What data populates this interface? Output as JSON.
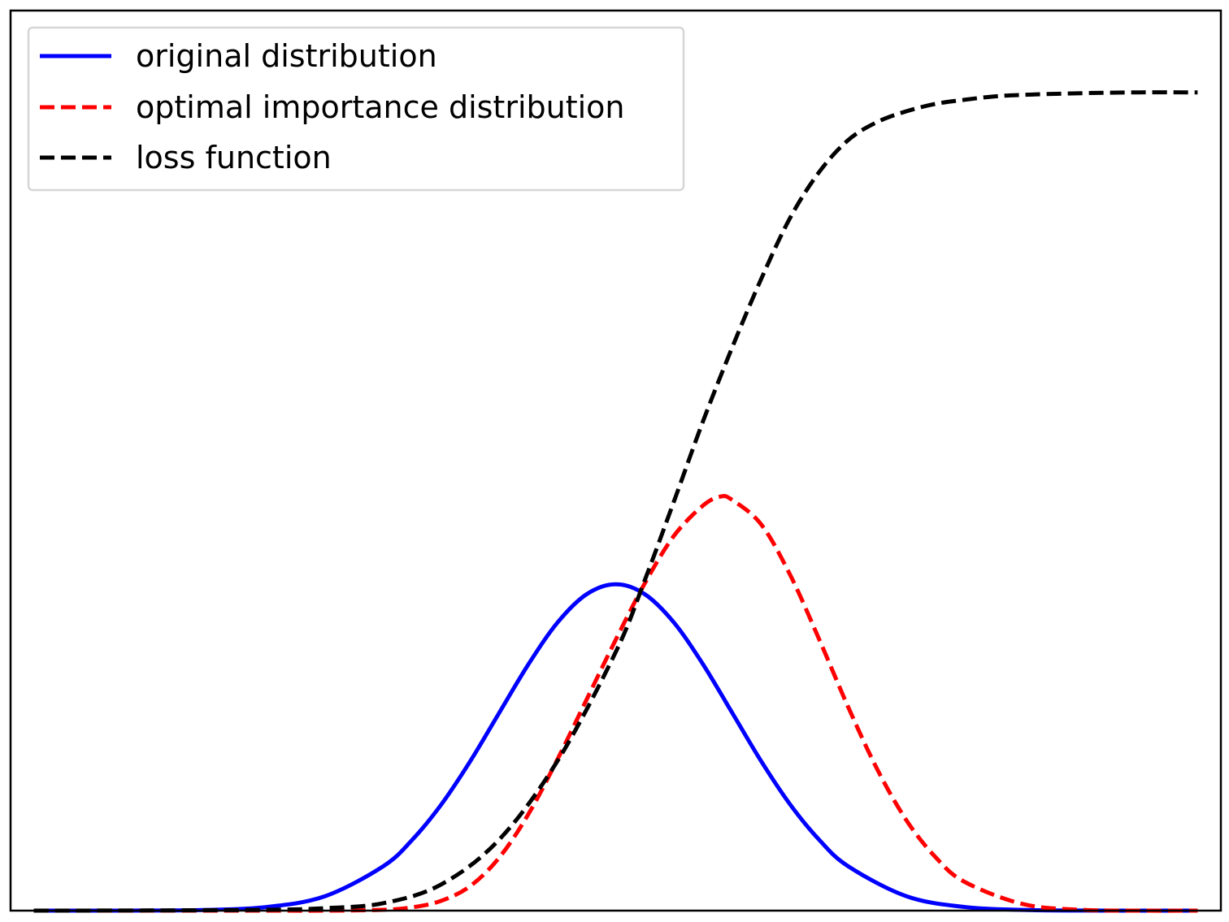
{
  "chart_data": {
    "type": "line",
    "title": "",
    "xlabel": "",
    "ylabel": "",
    "xlim": [
      -5.2,
      5.2
    ],
    "ylim": [
      0,
      1.1
    ],
    "grid": false,
    "ticks_visible": false,
    "legend_placement": "upper-left",
    "series": [
      {
        "name": "original distribution",
        "color": "#0000ff",
        "linestyle": "solid",
        "x": [
          -5.0,
          -4.5,
          -4.0,
          -3.5,
          -3.0,
          -2.5,
          -2.0,
          -1.75,
          -1.5,
          -1.25,
          -1.0,
          -0.75,
          -0.5,
          -0.25,
          0.0,
          0.25,
          0.5,
          0.75,
          1.0,
          1.25,
          1.5,
          1.75,
          2.0,
          2.5,
          3.0,
          3.5,
          4.0,
          4.5,
          5.0
        ],
        "y": [
          0.0,
          0.0,
          0.0001,
          0.0009,
          0.0044,
          0.0175,
          0.054,
          0.0863,
          0.1295,
          0.1826,
          0.242,
          0.3011,
          0.3521,
          0.3867,
          0.3989,
          0.3867,
          0.3521,
          0.3011,
          0.242,
          0.1826,
          0.1295,
          0.0863,
          0.054,
          0.0175,
          0.0044,
          0.0009,
          0.0001,
          0.0,
          0.0
        ]
      },
      {
        "name": "optimal importance distribution",
        "color": "#ff0000",
        "linestyle": "dashed",
        "x": [
          -5.0,
          -4.0,
          -3.0,
          -2.5,
          -2.0,
          -1.75,
          -1.5,
          -1.25,
          -1.0,
          -0.75,
          -0.5,
          -0.25,
          0.0,
          0.25,
          0.5,
          0.75,
          0.9,
          1.0,
          1.25,
          1.5,
          1.75,
          2.0,
          2.25,
          2.5,
          2.75,
          3.0,
          3.5,
          4.0,
          4.5,
          5.0
        ],
        "y": [
          0.0,
          0.0,
          0.0,
          0.0,
          0.001,
          0.004,
          0.012,
          0.03,
          0.065,
          0.118,
          0.185,
          0.258,
          0.331,
          0.4,
          0.458,
          0.495,
          0.506,
          0.502,
          0.472,
          0.41,
          0.331,
          0.248,
          0.172,
          0.11,
          0.065,
          0.035,
          0.008,
          0.001,
          0.0,
          0.0
        ]
      },
      {
        "name": "loss function",
        "color": "#000000",
        "linestyle": "dashed",
        "x": [
          -5.0,
          -4.0,
          -3.0,
          -2.5,
          -2.0,
          -1.5,
          -1.0,
          -0.5,
          0.0,
          0.25,
          0.5,
          0.75,
          1.0,
          1.25,
          1.5,
          1.75,
          2.0,
          2.25,
          2.5,
          2.75,
          3.0,
          3.25,
          3.5,
          4.0,
          4.5,
          5.0
        ],
        "y": [
          0.0,
          0.0002,
          0.001,
          0.003,
          0.009,
          0.032,
          0.087,
          0.183,
          0.316,
          0.404,
          0.5,
          0.598,
          0.688,
          0.772,
          0.847,
          0.903,
          0.942,
          0.964,
          0.977,
          0.986,
          0.991,
          0.995,
          0.997,
          0.999,
          1.0,
          1.0
        ]
      }
    ]
  }
}
